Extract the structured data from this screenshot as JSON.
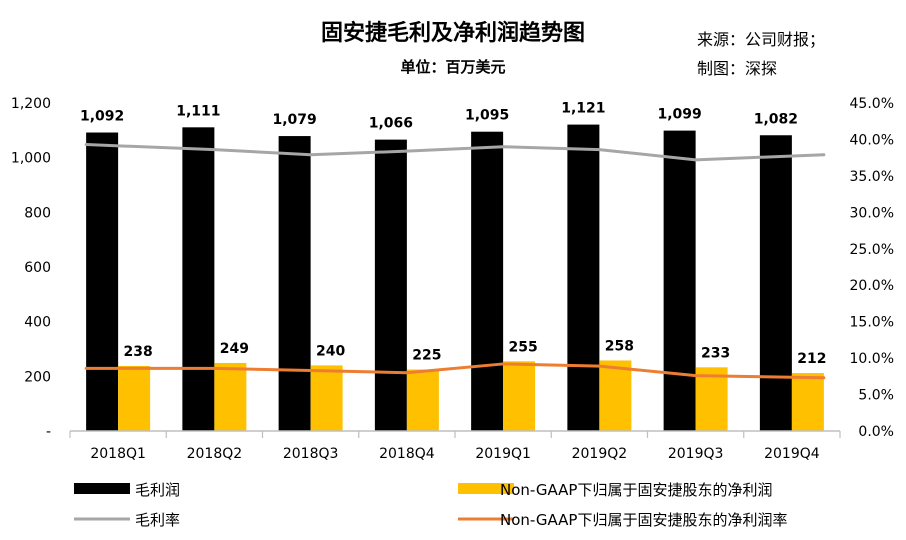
{
  "chart_data": {
    "type": "bar",
    "title": "固安捷毛利及净利润趋势图",
    "subtitle": "单位：百万美元",
    "source": "来源：公司财报；",
    "author": "制图：深探",
    "categories": [
      "2018Q1",
      "2018Q2",
      "2018Q3",
      "2018Q4",
      "2019Q1",
      "2019Q2",
      "2019Q3",
      "2019Q4"
    ],
    "left_axis": {
      "ylim": [
        0,
        1200
      ],
      "ticks": [
        0,
        200,
        400,
        600,
        800,
        1000,
        1200
      ],
      "tick_labels": [
        "-",
        "200",
        "400",
        "600",
        "800",
        "1,000",
        "1,200"
      ]
    },
    "right_axis": {
      "ylim": [
        0,
        45
      ],
      "ticks": [
        0,
        5,
        10,
        15,
        20,
        25,
        30,
        35,
        40,
        45
      ],
      "tick_labels": [
        "0.0%",
        "5.0%",
        "10.0%",
        "15.0%",
        "20.0%",
        "25.0%",
        "30.0%",
        "35.0%",
        "40.0%",
        "45.0%"
      ]
    },
    "series": [
      {
        "name": "毛利润",
        "kind": "bar",
        "axis": "left",
        "color": "#000000",
        "values": [
          1092,
          1111,
          1079,
          1066,
          1095,
          1121,
          1099,
          1082
        ],
        "labels": [
          "1,092",
          "1,111",
          "1,079",
          "1,066",
          "1,095",
          "1,121",
          "1,099",
          "1,082"
        ]
      },
      {
        "name": "Non-GAAP下归属于固安捷股东的净利润",
        "kind": "bar",
        "axis": "left",
        "color": "#FFC000",
        "values": [
          238,
          249,
          240,
          225,
          255,
          258,
          233,
          212
        ],
        "labels": [
          "238",
          "249",
          "240",
          "225",
          "255",
          "258",
          "233",
          "212"
        ]
      },
      {
        "name": "毛利率",
        "kind": "line",
        "axis": "right",
        "color": "#A6A6A6",
        "values": [
          39.3,
          38.6,
          37.9,
          38.4,
          39.0,
          38.6,
          37.2,
          37.9
        ]
      },
      {
        "name": "Non-GAAP下归属于固安捷股东的净利润率",
        "kind": "line",
        "axis": "right",
        "color": "#ED7D31",
        "values": [
          8.6,
          8.6,
          8.3,
          8.0,
          9.2,
          8.9,
          7.6,
          7.3
        ]
      }
    ]
  }
}
